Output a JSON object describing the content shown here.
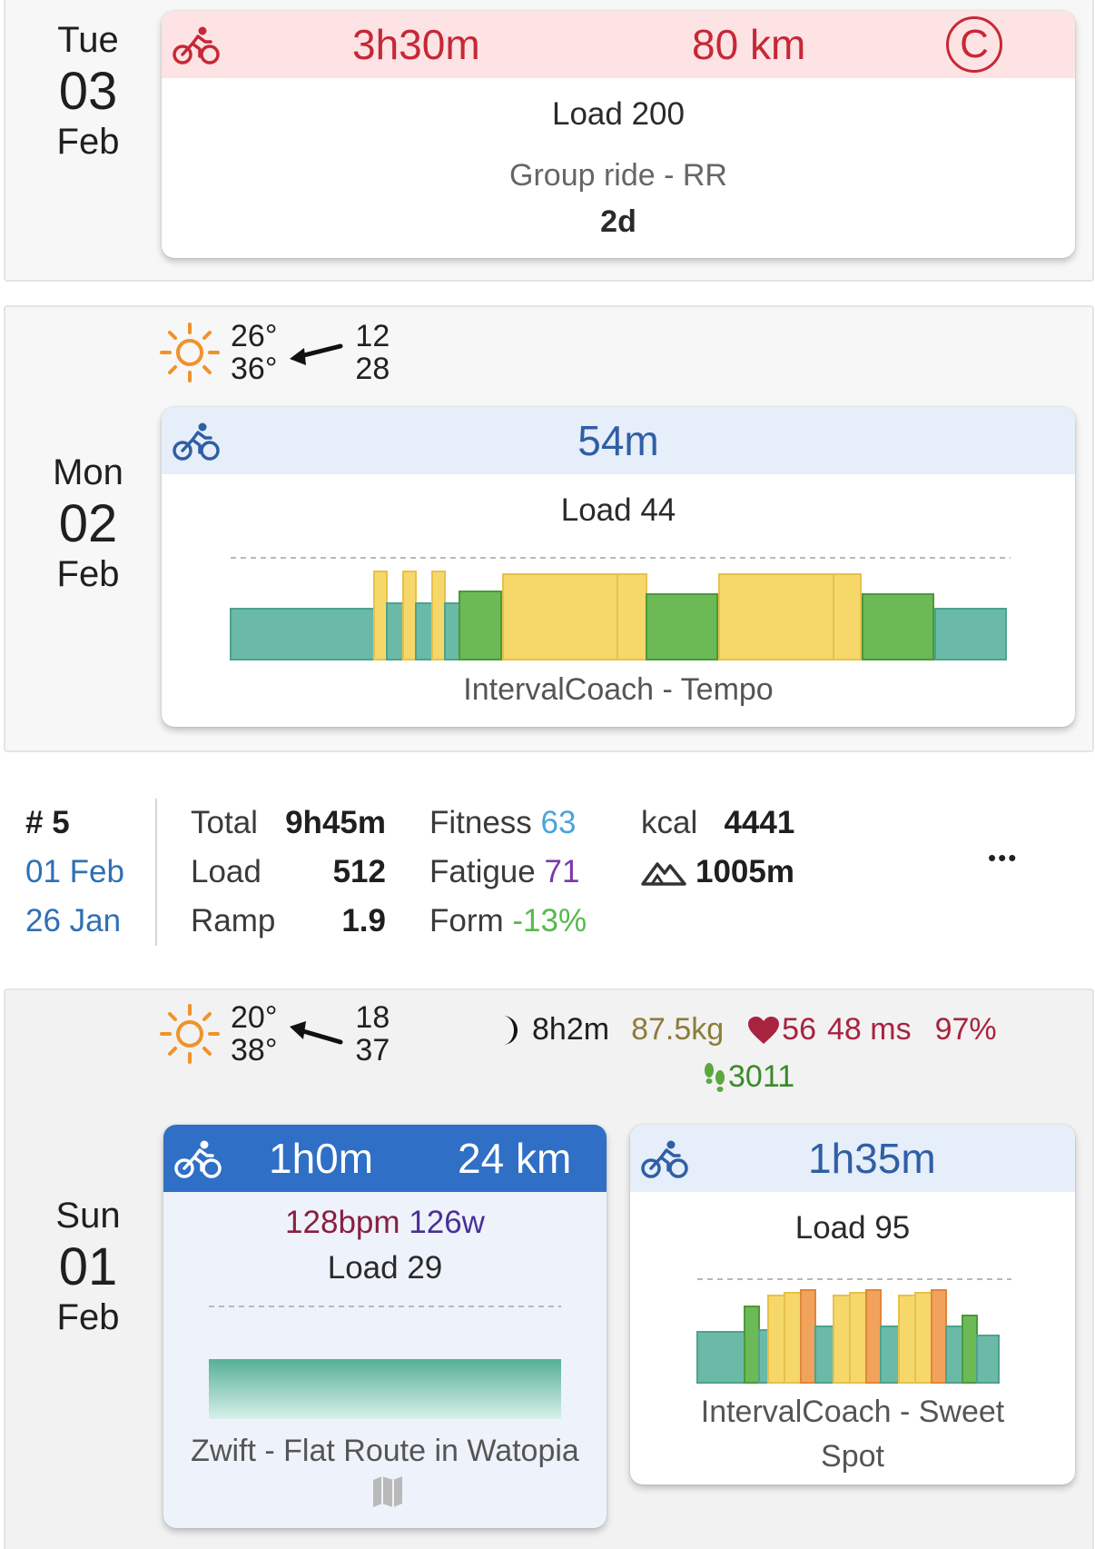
{
  "days": [
    {
      "dow": "Tue",
      "num": "03",
      "mon": "Feb",
      "cards": [
        {
          "duration": "3h30m",
          "distance": "80 km",
          "category": "C",
          "load": "Load 200",
          "name": "Group ride - RR",
          "eta": "2d"
        }
      ]
    },
    {
      "dow": "Mon",
      "num": "02",
      "mon": "Feb",
      "weather": {
        "temp_low": "26°",
        "temp_high": "36°",
        "wind_low": "12",
        "wind_high": "28"
      },
      "cards": [
        {
          "duration": "54m",
          "load": "Load 44",
          "name": "IntervalCoach - Tempo"
        }
      ]
    },
    {
      "dow": "Sun",
      "num": "01",
      "mon": "Feb",
      "weather": {
        "temp_low": "20°",
        "temp_high": "38°",
        "wind_low": "18",
        "wind_high": "37"
      },
      "wellness": {
        "sleep": "8h2m",
        "weight": "87.5kg",
        "rest_hr": "56",
        "hrv": "48 ms",
        "readiness": "97%",
        "steps": "3011"
      },
      "cards": [
        {
          "duration": "1h0m",
          "distance": "24 km",
          "hr": "128bpm",
          "power": "126w",
          "load": "Load 29",
          "name": "Zwift - Flat Route in Watopia"
        },
        {
          "duration": "1h35m",
          "load": "Load 95",
          "name": "IntervalCoach - Sweet Spot"
        }
      ]
    }
  ],
  "week": {
    "number": "# 5",
    "date_1": "01 Feb",
    "date_2": "26 Jan",
    "total_label": "Total",
    "total": "9h45m",
    "load_label": "Load",
    "load": "512",
    "ramp_label": "Ramp",
    "ramp": "1.9",
    "fitness_label": "Fitness",
    "fitness": "63",
    "fatigue_label": "Fatigue",
    "fatigue": "71",
    "form_label": "Form",
    "form": "-13%",
    "kcal_label": "kcal",
    "kcal": "4441",
    "elevation": "1005m",
    "more": "•••"
  },
  "colors": {
    "planned_red": "#c62837",
    "planned_red_bg": "#fde3e3",
    "planned_blue": "#2f5fa5",
    "planned_blue_bg": "#e6eef9",
    "done_blue": "#2f6fc5",
    "zone_teal": "#6bbaa7",
    "zone_green": "#6bba56",
    "zone_yellow": "#f6d86a",
    "zone_orange": "#f2a35b"
  }
}
